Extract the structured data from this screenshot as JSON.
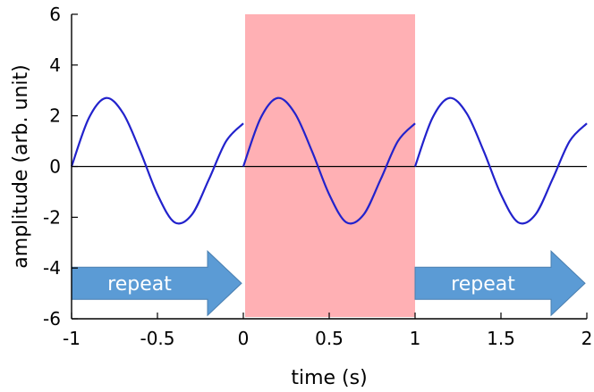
{
  "chart_data": {
    "type": "line",
    "title": "",
    "xlabel": "time (s)",
    "ylabel": "amplitude (arb. unit)",
    "xlim": [
      -1,
      2
    ],
    "ylim": [
      -6,
      6
    ],
    "xticks": [
      "-1",
      "-0.5",
      "0",
      "0.5",
      "1",
      "1.5",
      "2"
    ],
    "yticks": [
      "6",
      "4",
      "2",
      "0",
      "-2",
      "-4",
      "-6"
    ],
    "grid": false,
    "zero_line": true,
    "highlight_region": {
      "x": [
        0,
        1
      ],
      "color": "#ffb0b4"
    },
    "arrows": [
      {
        "label": "repeat",
        "x": [
          -1,
          0
        ],
        "color": "#5b9bd5"
      },
      {
        "label": "repeat",
        "x": [
          1,
          2
        ],
        "color": "#5b9bd5"
      }
    ],
    "series": [
      {
        "color": "#2222cc",
        "segments": [
          {
            "x": [
              -1.0,
              -0.9,
              -0.8,
              -0.7,
              -0.6,
              -0.5,
              -0.4,
              -0.3,
              -0.2,
              -0.1,
              0.0
            ],
            "y": [
              0.0,
              1.9,
              2.7,
              2.1,
              0.6,
              -1.1,
              -2.2,
              -1.9,
              -0.5,
              1.0,
              1.7
            ]
          },
          {
            "x": [
              0.0,
              0.1,
              0.2,
              0.3,
              0.4,
              0.5,
              0.6,
              0.7,
              0.8,
              0.9,
              1.0
            ],
            "y": [
              0.0,
              1.9,
              2.7,
              2.1,
              0.6,
              -1.1,
              -2.2,
              -1.9,
              -0.5,
              1.0,
              1.7
            ]
          },
          {
            "x": [
              1.0,
              1.1,
              1.2,
              1.3,
              1.4,
              1.5,
              1.6,
              1.7,
              1.8,
              1.9,
              2.0
            ],
            "y": [
              0.0,
              1.9,
              2.7,
              2.1,
              0.6,
              -1.1,
              -2.2,
              -1.9,
              -0.5,
              1.0,
              1.7
            ]
          }
        ]
      }
    ],
    "colors": {
      "axis": "#000000",
      "arrow": "#5b9bd5",
      "arrow_stroke": "#4a7fb0",
      "highlight": "#ffb0b4",
      "line": "#2222cc"
    }
  }
}
